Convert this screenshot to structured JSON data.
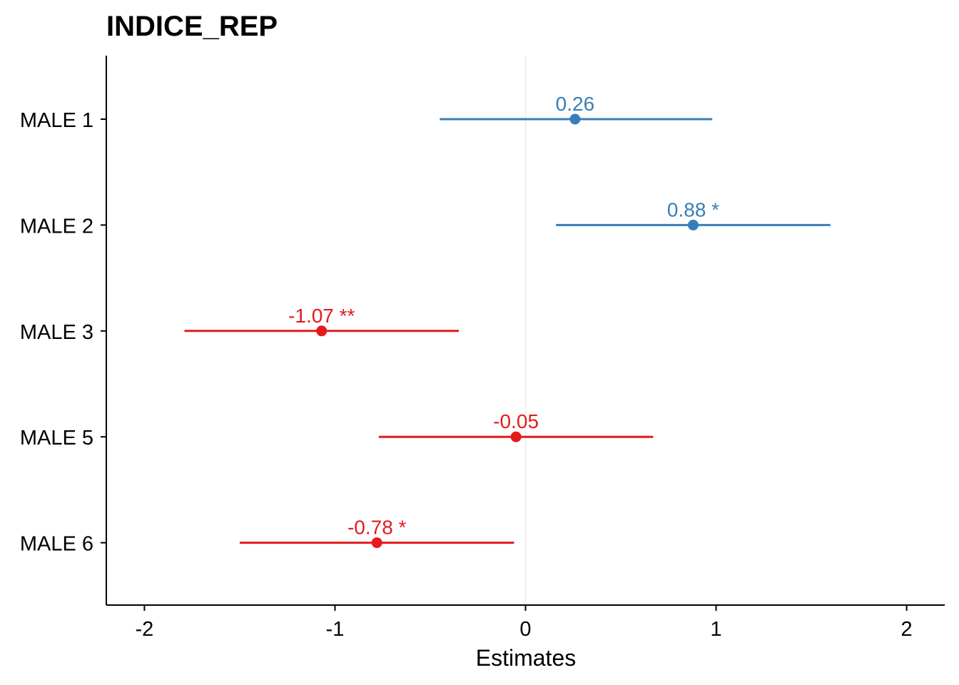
{
  "chart_data": {
    "type": "forest",
    "title": "INDICE_REP",
    "xlabel": "Estimates",
    "ylabel": "",
    "xlim": [
      -2.2,
      2.2
    ],
    "x_ticks": [
      -2,
      -1,
      0,
      1,
      2
    ],
    "x_tick_labels": [
      "-2",
      "-1",
      "0",
      "1",
      "2"
    ],
    "reference_line": 0,
    "grid": false,
    "colors": {
      "positive": "#377eb8",
      "negative": "#e41a1c",
      "axis": "#000000",
      "zero_line": "#ebebeb"
    },
    "terms": [
      {
        "label": "MALE 1",
        "estimate": 0.26,
        "ci_low": -0.45,
        "ci_high": 0.98,
        "data_label": "0.26"
      },
      {
        "label": "MALE 2",
        "estimate": 0.88,
        "ci_low": 0.16,
        "ci_high": 1.6,
        "data_label": "0.88 *"
      },
      {
        "label": "MALE 3",
        "estimate": -1.07,
        "ci_low": -1.79,
        "ci_high": -0.35,
        "data_label": "-1.07 **"
      },
      {
        "label": "MALE 5",
        "estimate": -0.05,
        "ci_low": -0.77,
        "ci_high": 0.67,
        "data_label": "-0.05"
      },
      {
        "label": "MALE 6",
        "estimate": -0.78,
        "ci_low": -1.5,
        "ci_high": -0.06,
        "data_label": "-0.78 *"
      }
    ]
  }
}
